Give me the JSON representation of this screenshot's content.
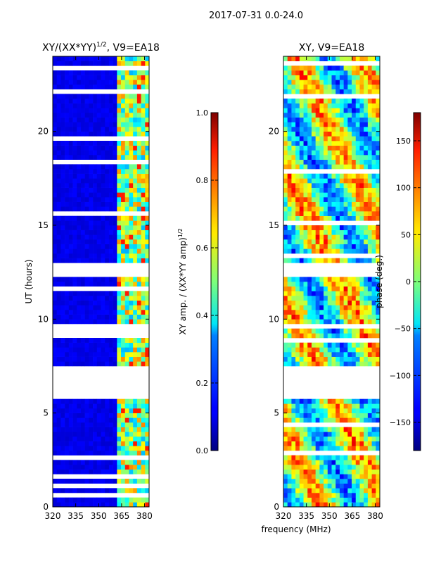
{
  "figure_title": "2017-07-31 0.0-24.0",
  "shared_xlabel": "frequency (MHz)",
  "chart_data": [
    {
      "type": "heatmap",
      "title": "XY/(XX*YY)",
      "title_sup": "1/2",
      "title_suffix": ", V9=EA18",
      "xlabel": "",
      "ylabel": "UT (hours)",
      "xlim": [
        320,
        383
      ],
      "ylim": [
        0,
        24
      ],
      "xticks": [
        320,
        335,
        350,
        365,
        380
      ],
      "yticks": [
        0,
        5,
        10,
        15,
        20
      ],
      "colorscale": "jet",
      "gaps_hours": [
        [
          5.8,
          7.6
        ],
        [
          12.3,
          12.9
        ]
      ],
      "active_band_mhz": [
        362,
        383
      ],
      "colorbar": {
        "label": "XY amp. / (XX*YY amp)",
        "label_sup": "1/2",
        "range": [
          0.0,
          1.0
        ],
        "ticks": [
          "0.0",
          "0.2",
          "0.4",
          "0.6",
          "0.8",
          "1.0"
        ],
        "tick_values": [
          0.0,
          0.2,
          0.4,
          0.6,
          0.8,
          1.0
        ]
      }
    },
    {
      "type": "heatmap",
      "title": "XY, V9=EA18",
      "xlabel": "",
      "ylabel": "",
      "xlim": [
        320,
        383
      ],
      "ylim": [
        0,
        24
      ],
      "xticks": [
        320,
        335,
        350,
        365,
        380
      ],
      "yticks": [
        0,
        5,
        10,
        15,
        20
      ],
      "colorscale": "jet",
      "gaps_hours": [
        [
          5.8,
          7.6
        ],
        [
          12.3,
          12.9
        ]
      ],
      "colorbar": {
        "label": "phase (deg.)",
        "range": [
          -180,
          180
        ],
        "ticks": [
          "150",
          "100",
          "50",
          "0",
          "−50",
          "−100",
          "−150"
        ],
        "tick_values": [
          150,
          100,
          50,
          0,
          -50,
          -100,
          -150
        ]
      }
    }
  ]
}
